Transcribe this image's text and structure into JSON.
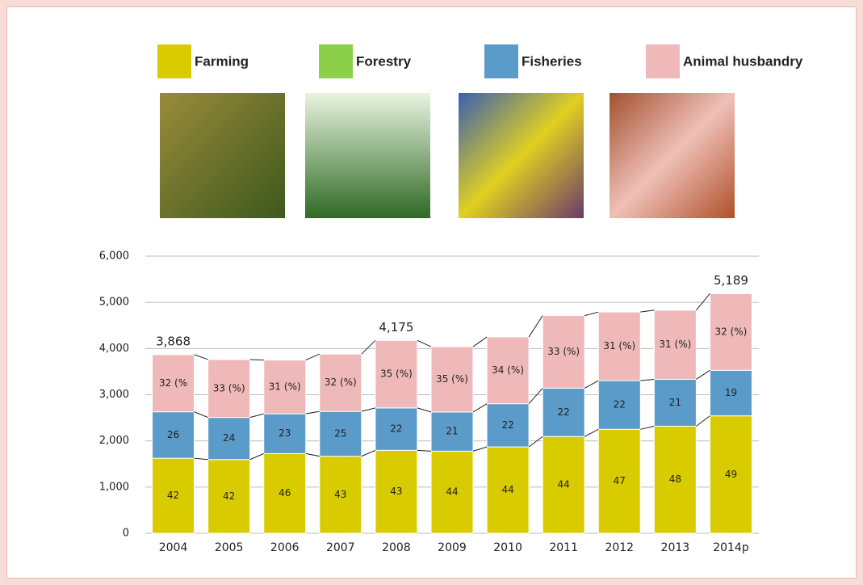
{
  "chart_data": {
    "type": "stacked-bar",
    "categories": [
      "2004",
      "2005",
      "2006",
      "2007",
      "2008",
      "2009",
      "2010",
      "2011",
      "2012",
      "2013",
      "2014p"
    ],
    "totals": [
      3868,
      3800,
      3750,
      3880,
      4175,
      4040,
      4250,
      4760,
      4790,
      4830,
      5189
    ],
    "total_labels": [
      "3,868",
      null,
      null,
      null,
      "4,175",
      null,
      null,
      null,
      null,
      null,
      "5,189"
    ],
    "series": [
      {
        "name": "Farming",
        "color": "#d8cc00",
        "values": [
          42,
          42,
          46,
          43,
          43,
          44,
          44,
          44,
          47,
          48,
          49
        ]
      },
      {
        "name": "Forestry",
        "color": "#8ccf48",
        "values": [
          null,
          null,
          null,
          null,
          null,
          null,
          null,
          null,
          null,
          null,
          null
        ]
      },
      {
        "name": "Fisheries",
        "color": "#5b9bc9",
        "values": [
          26,
          24,
          23,
          25,
          22,
          21,
          22,
          22,
          22,
          21,
          19
        ]
      },
      {
        "name": "Animal husbandry",
        "color": "#efb9b9",
        "values": [
          32,
          33,
          31,
          32,
          35,
          35,
          34,
          33,
          31,
          31,
          32
        ],
        "value_labels": [
          "32 (%",
          "33 (%)",
          "31 (%)",
          "32 (%)",
          "35 (%)",
          "35 (%)",
          "34 (%)",
          "33 (%)",
          "31 (%)",
          "31 (%)",
          "32 (%)"
        ]
      }
    ],
    "ylim": [
      0,
      6000
    ],
    "yticks": [
      0,
      {
        "value": 1000,
        "label": "1,000"
      },
      {
        "value": 2000,
        "label": "2,000"
      },
      {
        "value": 3000,
        "label": "3,000"
      },
      {
        "value": 4000,
        "label": "4,000"
      },
      {
        "value": 5000,
        "label": "5,000"
      },
      {
        "value": 6000,
        "label": "6,000"
      }
    ],
    "grid": true
  }
}
